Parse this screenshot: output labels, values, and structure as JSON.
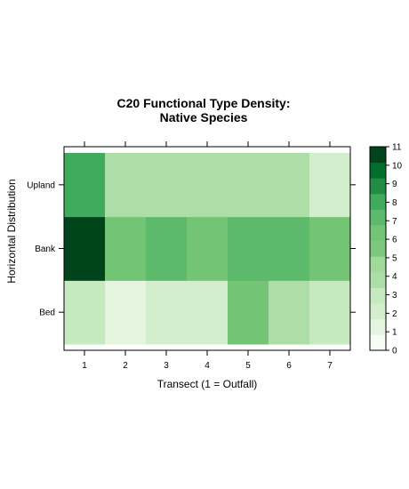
{
  "chart_data": {
    "type": "heatmap",
    "title": "C20 Functional Type Density:",
    "subtitle": "Native Species",
    "xlabel": "Transect (1 = Outfall)",
    "ylabel": "Horizontal Distribution",
    "x": [
      "1",
      "2",
      "3",
      "4",
      "5",
      "6",
      "7"
    ],
    "y": [
      "Bed",
      "Bank",
      "Upland"
    ],
    "values": [
      [
        3,
        1,
        2,
        2,
        6,
        4,
        3
      ],
      [
        11,
        6,
        7,
        6,
        7,
        7,
        6
      ],
      [
        8,
        4,
        4,
        4,
        4,
        4,
        2
      ]
    ],
    "color_range": [
      0,
      11
    ],
    "colorbar_ticks": [
      "0",
      "1",
      "2",
      "3",
      "4",
      "5",
      "6",
      "7",
      "8",
      "9",
      "10",
      "11"
    ],
    "palette": [
      "#F7FCF5",
      "#E5F5E0",
      "#D3EECD",
      "#C7E9C0",
      "#AEDEA7",
      "#A1D99B",
      "#7BC87C",
      "#74C476",
      "#5DB96B",
      "#41AB5D",
      "#238B45",
      "#006D2C",
      "#00441B"
    ],
    "grid": false,
    "legend": "right"
  }
}
